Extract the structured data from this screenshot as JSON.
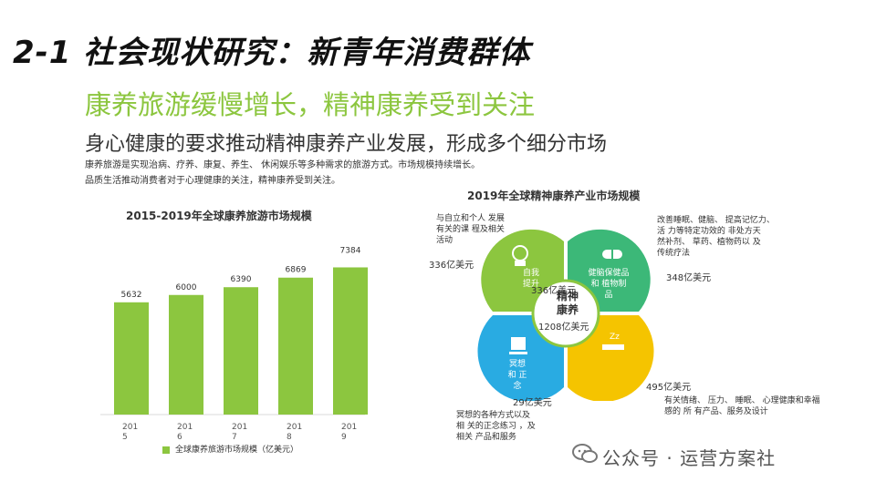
{
  "slide": {
    "title": "2-1 社会现状研究：新青年消费群体",
    "subtitle": "康养旅游缓慢增长，精神康养受到关注",
    "headline": "身心健康的要求推动精神康养产业发展，形成多个细分市场",
    "desc_line1": "康养旅游是实现治病、疗养、康复、养生、 休闲娱乐等多种需求的旅游方式。市场规模持续增长。",
    "desc_line2": "品质生活推动消费者对于心理健康的关注，精神康养受到关注。"
  },
  "chart_data": [
    {
      "type": "bar",
      "title": "2015-2019年全球康养旅游市场规模",
      "categories": [
        "2015",
        "2016",
        "2017",
        "2018",
        "2019"
      ],
      "category_labels": [
        [
          "201",
          "5"
        ],
        [
          "201",
          "6"
        ],
        [
          "201",
          "7"
        ],
        [
          "201",
          "8"
        ],
        [
          "201",
          "9"
        ]
      ],
      "values": [
        5632,
        6000,
        6390,
        6869,
        7384
      ],
      "data_labels": [
        "5632",
        "6000",
        "6390",
        "6869",
        "7384"
      ],
      "series_name": "全球康养旅游市场规模（亿美元）",
      "ylim": [
        0,
        8000
      ],
      "color": "#8cc63f",
      "grid": false,
      "legend": "bottom"
    }
  ],
  "mind_map": {
    "title": "2019年全球精神康养产业市场规模",
    "center": {
      "label_line1": "精神",
      "label_line2": "康养",
      "value": "1208亿美元"
    },
    "petals": [
      {
        "label_line1": "自我",
        "label_line2": "提升",
        "value": "336亿美元",
        "outer_value": "336亿美元",
        "color": "#8cc63f",
        "icon": "brain-head-icon",
        "description": [
          "与自立和个人 发展",
          "有关的课 程及相关",
          "活动"
        ]
      },
      {
        "label_line1": "健脑保健品",
        "label_line2": "和 植物制",
        "label_line3": "品",
        "value": "348亿美元",
        "color": "#3cb878",
        "icon": "pill-icon",
        "description": [
          "改善睡眠、健脑、   提高记忆力、",
          "活     力等特定功效的     非处方天",
          "然补剂、    草药、植物药以     及",
          "传统疗法"
        ]
      },
      {
        "label_line1": "冥想",
        "label_line2": "和 正",
        "label_line3": "念",
        "value": "29亿美元",
        "color": "#29abe2",
        "icon": "meditation-icon",
        "description": [
          "冥想的各种方式以及",
          "相 关的正念练习 ，及",
          "相关 产品和服务"
        ]
      },
      {
        "label_line1": "",
        "label_line2": "",
        "value": "495亿美元",
        "color": "#f5c400",
        "icon": "sleep-bed-icon",
        "description": [
          "有关情绪、   压力、  睡眠、   心理健康和幸福",
          "感的 所    有产品、服务及设计"
        ]
      }
    ]
  },
  "watermark": {
    "text": "公众号 · 运营方案社",
    "icon": "wechat-icon"
  },
  "colors": {
    "accent_green": "#8cc63f",
    "teal": "#3cb878",
    "blue": "#29abe2",
    "yellow": "#f5c400"
  }
}
